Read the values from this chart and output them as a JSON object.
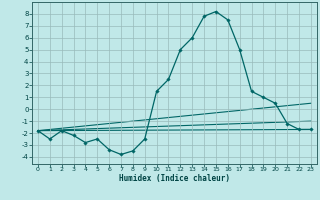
{
  "title": "",
  "xlabel": "Humidex (Indice chaleur)",
  "bg_color": "#c0e8e8",
  "grid_color": "#99bbbb",
  "line_color": "#006666",
  "xlim": [
    -0.5,
    23.5
  ],
  "ylim": [
    -4.6,
    9.0
  ],
  "xticks": [
    0,
    1,
    2,
    3,
    4,
    5,
    6,
    7,
    8,
    9,
    10,
    11,
    12,
    13,
    14,
    15,
    16,
    17,
    18,
    19,
    20,
    21,
    22,
    23
  ],
  "yticks": [
    -4,
    -3,
    -2,
    -1,
    0,
    1,
    2,
    3,
    4,
    5,
    6,
    7,
    8
  ],
  "main_x": [
    0,
    1,
    2,
    3,
    4,
    5,
    6,
    7,
    8,
    9,
    10,
    11,
    12,
    13,
    14,
    15,
    16,
    17,
    18,
    19,
    20,
    21,
    22,
    23
  ],
  "main_y": [
    -1.8,
    -2.5,
    -1.8,
    -2.2,
    -2.8,
    -2.5,
    -3.4,
    -3.8,
    -3.5,
    -2.5,
    1.5,
    2.5,
    5.0,
    6.0,
    7.8,
    8.2,
    7.5,
    5.0,
    1.5,
    1.0,
    0.5,
    -1.2,
    -1.7,
    -1.7
  ],
  "trend_lines": [
    {
      "x": [
        0,
        23
      ],
      "y": [
        -1.8,
        -1.7
      ]
    },
    {
      "x": [
        0,
        23
      ],
      "y": [
        -1.8,
        -1.0
      ]
    },
    {
      "x": [
        0,
        23
      ],
      "y": [
        -1.8,
        0.5
      ]
    }
  ],
  "tick_color": "#004444",
  "spine_color": "#336666"
}
